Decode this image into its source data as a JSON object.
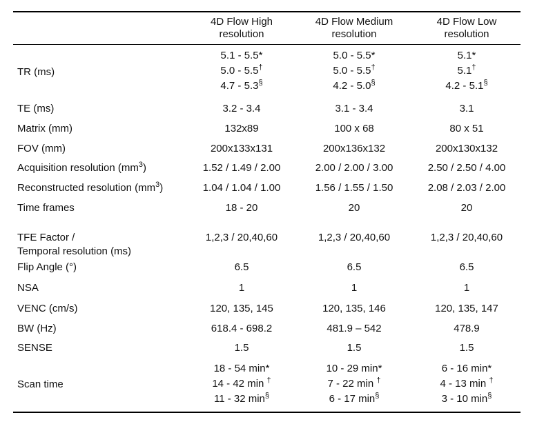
{
  "header": {
    "col1": [
      "4D Flow High",
      "resolution"
    ],
    "col2": [
      "4D Flow Medium",
      "resolution"
    ],
    "col3": [
      "4D Flow Low",
      "resolution"
    ]
  },
  "rows": {
    "tr": {
      "label": "TR (ms)",
      "col1": [
        {
          "v": "5.1 - 5.5*",
          "s": ""
        },
        {
          "v": "5.0 - 5.5",
          "s": "†"
        },
        {
          "v": "4.7 - 5.3",
          "s": "§"
        }
      ],
      "col2": [
        {
          "v": "5.0 - 5.5*",
          "s": ""
        },
        {
          "v": "5.0 - 5.5",
          "s": "†"
        },
        {
          "v": "4.2 - 5.0",
          "s": "§"
        }
      ],
      "col3": [
        {
          "v": "5.1*",
          "s": ""
        },
        {
          "v": "5.1",
          "s": "†"
        },
        {
          "v": "4.2 - 5.1",
          "s": "§"
        }
      ]
    },
    "te": {
      "label": "TE (ms)",
      "col1": "3.2 - 3.4",
      "col2": "3.1 - 3.4",
      "col3": "3.1"
    },
    "matrix": {
      "label": "Matrix (mm)",
      "col1": "132x89",
      "col2": "100 x 68",
      "col3": "80 x 51"
    },
    "fov": {
      "label": "FOV (mm)",
      "col1": "200x133x131",
      "col2": "200x136x132",
      "col3": "200x130x132"
    },
    "acq": {
      "label": "Acquisition resolution (mm",
      "sup": "3",
      "close": ")",
      "col1": "1.52 / 1.49 / 2.00",
      "col2": "2.00 / 2.00 / 3.00",
      "col3": "2.50 / 2.50 / 4.00"
    },
    "recon": {
      "label": "Reconstructed resolution (mm",
      "sup": "3",
      "close": ")",
      "col1": "1.04 / 1.04 / 1.00",
      "col2": "1.56 / 1.55 / 1.50",
      "col3": "2.08 / 2.03 / 2.00"
    },
    "frames": {
      "label": "Time frames",
      "col1": "18 - 20",
      "col2": "20",
      "col3": "20"
    },
    "tfe": {
      "label": [
        "TFE Factor /",
        "Temporal resolution (ms)"
      ],
      "col1": "1,2,3 / 20,40,60",
      "col2": "1,2,3 / 20,40,60",
      "col3": "1,2,3 / 20,40,60"
    },
    "flip": {
      "label": "Flip Angle (°)",
      "col1": "6.5",
      "col2": "6.5",
      "col3": "6.5"
    },
    "nsa": {
      "label": "NSA",
      "col1": "1",
      "col2": "1",
      "col3": "1"
    },
    "venc": {
      "label": "VENC (cm/s)",
      "col1": "120, 135, 145",
      "col2": "120, 135, 146",
      "col3": "120, 135, 147"
    },
    "bw": {
      "label": "BW (Hz)",
      "col1": "618.4 - 698.2",
      "col2": "481.9 – 542",
      "col3": "478.9"
    },
    "sense": {
      "label": "SENSE",
      "col1": "1.5",
      "col2": "1.5",
      "col3": "1.5"
    },
    "scan": {
      "label": "Scan time",
      "col1": [
        {
          "v": "18 - 54 min*",
          "s": ""
        },
        {
          "v": "14 - 42 min ",
          "s": "†"
        },
        {
          "v": "11 - 32 min",
          "s": "§"
        }
      ],
      "col2": [
        {
          "v": "10 - 29 min*",
          "s": ""
        },
        {
          "v": "7 - 22 min ",
          "s": "†"
        },
        {
          "v": "6 - 17 min",
          "s": "§"
        }
      ],
      "col3": [
        {
          "v": "6 - 16 min*",
          "s": ""
        },
        {
          "v": "4 - 13 min ",
          "s": "†"
        },
        {
          "v": "3 - 10 min",
          "s": "§"
        }
      ]
    }
  }
}
